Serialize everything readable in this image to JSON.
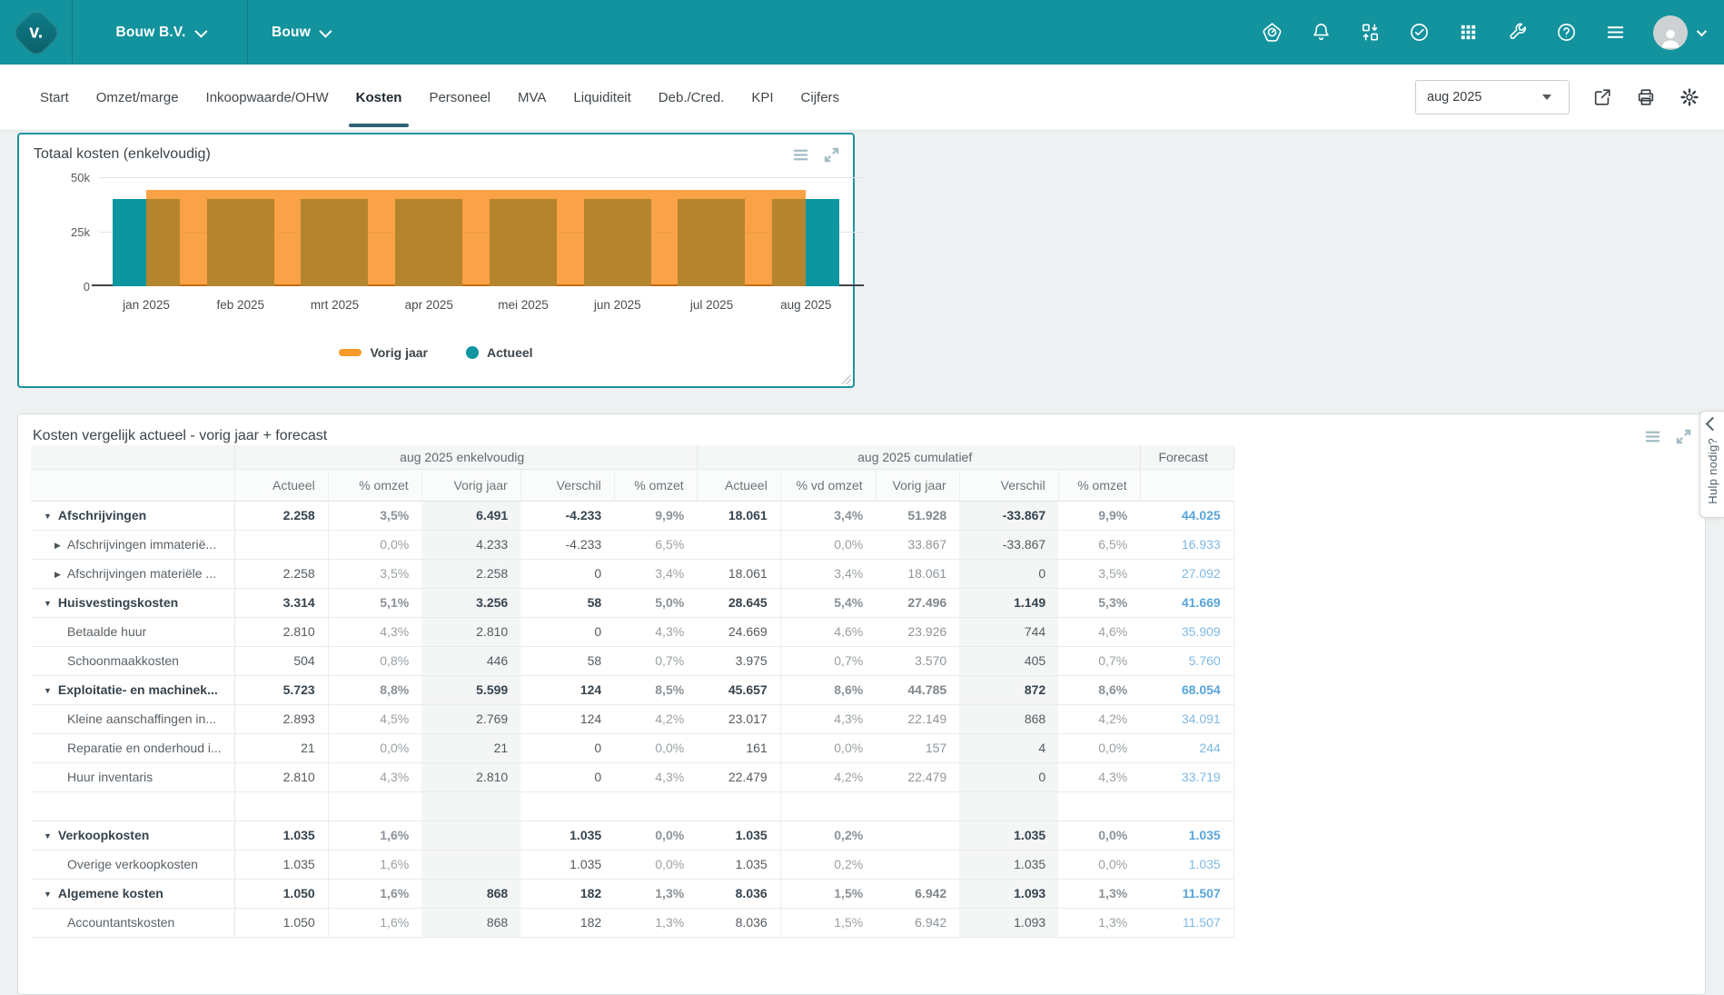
{
  "topbar": {
    "company": "Bouw B.V.",
    "dashboard": "Bouw",
    "icons": [
      "visionplanner-gauge",
      "notifications-bell",
      "import-export",
      "tasks-check",
      "apps-grid",
      "tools-wrench",
      "help-question",
      "menu-hamburger"
    ]
  },
  "tabbar": {
    "tabs": [
      {
        "label": "Start",
        "active": false
      },
      {
        "label": "Omzet/marge",
        "active": false
      },
      {
        "label": "Inkoopwaarde/OHW",
        "active": false
      },
      {
        "label": "Kosten",
        "active": true
      },
      {
        "label": "Personeel",
        "active": false
      },
      {
        "label": "MVA",
        "active": false
      },
      {
        "label": "Liquiditeit",
        "active": false
      },
      {
        "label": "Deb./Cred.",
        "active": false
      },
      {
        "label": "KPI",
        "active": false
      },
      {
        "label": "Cijfers",
        "active": false
      }
    ],
    "period_select": {
      "value": "aug 2025"
    },
    "action_icons": [
      "share-export",
      "print",
      "settings-gear"
    ]
  },
  "chart_panel": {
    "title": "Totaal kosten (enkelvoudig)",
    "legend": [
      {
        "label": "Vorig jaar",
        "color": "#f79a28",
        "marker": "dash"
      },
      {
        "label": "Actueel",
        "color": "#0e96a0",
        "marker": "circle"
      }
    ],
    "chart_data": {
      "type": "bar",
      "title": "Totaal kosten (enkelvoudig)",
      "categories": [
        "jan 2025",
        "feb 2025",
        "mrt 2025",
        "apr 2025",
        "mei 2025",
        "jun 2025",
        "jul 2025",
        "aug 2025"
      ],
      "series": [
        {
          "name": "Vorig jaar",
          "type": "band",
          "color": "#f79a28",
          "values": [
            44000,
            44000,
            44000,
            44000,
            44000,
            44000,
            44000,
            44000
          ]
        },
        {
          "name": "Actueel",
          "type": "bar",
          "color": "#0e96a0",
          "values": [
            40000,
            40000,
            40000,
            40000,
            40000,
            40000,
            40000,
            40000
          ]
        }
      ],
      "ylim": [
        0,
        50000
      ],
      "yticks": [
        {
          "label": "50k",
          "value": 50000
        },
        {
          "label": "25k",
          "value": 25000
        },
        {
          "label": "0",
          "value": 0
        }
      ],
      "grid": true,
      "legend_position": "bottom"
    }
  },
  "table_panel": {
    "title": "Kosten vergelijk actueel - vorig jaar + forecast",
    "column_groups": [
      {
        "label": "",
        "span": 1
      },
      {
        "label": "aug 2025 enkelvoudig",
        "span": 5
      },
      {
        "label": "aug 2025 cumulatief",
        "span": 5
      },
      {
        "label": "Forecast",
        "span": 1
      }
    ],
    "columns": [
      "",
      "Actueel",
      "% omzet",
      "Vorig jaar",
      "Verschil",
      "% omzet",
      "Actueel",
      "% vd omzet",
      "Vorig jaar",
      "Verschil",
      "% omzet",
      ""
    ],
    "rows": [
      {
        "label": "Afschrijvingen",
        "type": "group",
        "arrow": "down",
        "cells": [
          "2.258",
          "3,5%",
          "6.491",
          "-4.233",
          "9,9%",
          "18.061",
          "3,4%",
          "51.928",
          "-33.867",
          "9,9%",
          "44.025"
        ]
      },
      {
        "label": "Afschrijvingen immaterië...",
        "type": "child",
        "arrow": "right",
        "cells": [
          "",
          "0,0%",
          "4.233",
          "-4.233",
          "6,5%",
          "",
          "0,0%",
          "33.867",
          "-33.867",
          "6,5%",
          "16.933"
        ]
      },
      {
        "label": "Afschrijvingen materiële ...",
        "type": "child",
        "arrow": "right",
        "cells": [
          "2.258",
          "3,5%",
          "2.258",
          "0",
          "3,4%",
          "18.061",
          "3,4%",
          "18.061",
          "0",
          "3,5%",
          "27.092"
        ]
      },
      {
        "label": "Huisvestingskosten",
        "type": "group",
        "arrow": "down",
        "cells": [
          "3.314",
          "5,1%",
          "3.256",
          "58",
          "5,0%",
          "28.645",
          "5,4%",
          "27.496",
          "1.149",
          "5,3%",
          "41.669"
        ]
      },
      {
        "label": "Betaalde huur",
        "type": "child",
        "arrow": "none",
        "cells": [
          "2.810",
          "4,3%",
          "2.810",
          "0",
          "4,3%",
          "24.669",
          "4,6%",
          "23.926",
          "744",
          "4,6%",
          "35.909"
        ]
      },
      {
        "label": "Schoonmaakkosten",
        "type": "child",
        "arrow": "none",
        "cells": [
          "504",
          "0,8%",
          "446",
          "58",
          "0,7%",
          "3.975",
          "0,7%",
          "3.570",
          "405",
          "0,7%",
          "5.760"
        ]
      },
      {
        "label": "Exploitatie- en machinek...",
        "type": "group",
        "arrow": "down",
        "cells": [
          "5.723",
          "8,8%",
          "5.599",
          "124",
          "8,5%",
          "45.657",
          "8,6%",
          "44.785",
          "872",
          "8,6%",
          "68.054"
        ]
      },
      {
        "label": "Kleine aanschaffingen in...",
        "type": "child",
        "arrow": "none",
        "cells": [
          "2.893",
          "4,5%",
          "2.769",
          "124",
          "4,2%",
          "23.017",
          "4,3%",
          "22.149",
          "868",
          "4,2%",
          "34.091"
        ]
      },
      {
        "label": "Reparatie en onderhoud i...",
        "type": "child",
        "arrow": "none",
        "cells": [
          "21",
          "0,0%",
          "21",
          "0",
          "0,0%",
          "161",
          "0,0%",
          "157",
          "4",
          "0,0%",
          "244"
        ]
      },
      {
        "label": "Huur inventaris",
        "type": "child",
        "arrow": "none",
        "cells": [
          "2.810",
          "4,3%",
          "2.810",
          "0",
          "4,3%",
          "22.479",
          "4,2%",
          "22.479",
          "0",
          "4,3%",
          "33.719"
        ]
      },
      {
        "label": "",
        "type": "spacer",
        "arrow": "none",
        "cells": [
          "",
          "",
          "",
          "",
          "",
          "",
          "",
          "",
          "",
          "",
          ""
        ]
      },
      {
        "label": "Verkoopkosten",
        "type": "group",
        "arrow": "down",
        "cells": [
          "1.035",
          "1,6%",
          "",
          "1.035",
          "0,0%",
          "1.035",
          "0,2%",
          "",
          "1.035",
          "0,0%",
          "1.035"
        ]
      },
      {
        "label": "Overige verkoopkosten",
        "type": "child",
        "arrow": "none",
        "cells": [
          "1.035",
          "1,6%",
          "",
          "1.035",
          "0,0%",
          "1.035",
          "0,2%",
          "",
          "1.035",
          "0,0%",
          "1.035"
        ]
      },
      {
        "label": "Algemene kosten",
        "type": "group",
        "arrow": "down",
        "cells": [
          "1.050",
          "1,6%",
          "868",
          "182",
          "1,3%",
          "8.036",
          "1,5%",
          "6.942",
          "1.093",
          "1,3%",
          "11.507"
        ]
      },
      {
        "label": "Accountantskosten",
        "type": "child",
        "arrow": "none",
        "cells": [
          "1.050",
          "1,6%",
          "868",
          "182",
          "1,3%",
          "8.036",
          "1,5%",
          "6.942",
          "1.093",
          "1,3%",
          "11.507"
        ]
      }
    ]
  },
  "help_tab": {
    "label": "Hulp nodig?"
  },
  "colors": {
    "topbar_teal": "#12939e",
    "bar_actueel": "#0e96a0",
    "band_vorig_jaar": "#f79a28",
    "forecast_blue": "#5fa8dc",
    "active_tab_underline": "#2e6376"
  }
}
